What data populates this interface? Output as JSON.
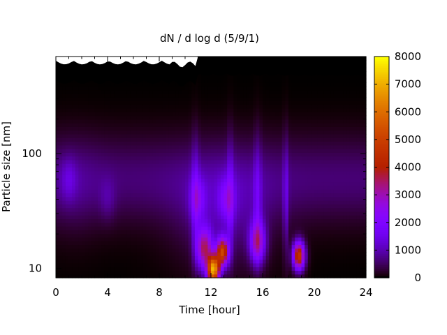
{
  "chart_data": {
    "type": "heatmap",
    "title": "dN / d log d (5/9/1)",
    "xlabel": "Time [hour]",
    "ylabel": "Particle size [nm]",
    "xlim": [
      0,
      24
    ],
    "x_ticks": [
      "0",
      "4",
      "8",
      "12",
      "16",
      "20",
      "24"
    ],
    "x_tick_values": [
      0,
      4,
      8,
      12,
      16,
      20,
      24
    ],
    "ylim_nm": [
      8.3,
      700
    ],
    "y_scale": "log",
    "y_ticks": [
      "10",
      "100"
    ],
    "y_tick_values": [
      10,
      100
    ],
    "colorbar": {
      "min": 0,
      "max": 8000,
      "ticks": [
        "0",
        "1000",
        "2000",
        "3000",
        "4000",
        "5000",
        "6000",
        "7000",
        "8000"
      ],
      "tick_values": [
        0,
        1000,
        2000,
        3000,
        4000,
        5000,
        6000,
        7000,
        8000
      ],
      "colormap": "gnuplot (black-purple-red-orange-yellow)"
    },
    "features": [
      {
        "time_hour": 12.2,
        "size_nm": 9.8,
        "value": 7000
      },
      {
        "time_hour": 12.9,
        "size_nm": 14,
        "value": 5000
      },
      {
        "time_hour": 11.5,
        "size_nm": 15,
        "value": 3500
      },
      {
        "time_hour": 18.8,
        "size_nm": 13,
        "value": 5000
      },
      {
        "time_hour": 15.6,
        "size_nm": 17,
        "value": 3000
      },
      {
        "time_hour": 11.0,
        "size_nm": 40,
        "value": 1500
      },
      {
        "time_hour": 13.2,
        "size_nm": 40,
        "value": 1500
      },
      {
        "time_hour": 1.0,
        "size_nm": 60,
        "value": 900
      },
      {
        "time_hour": 4.0,
        "size_nm": 40,
        "value": 700
      }
    ]
  },
  "colors": {
    "background": "#ffffff",
    "missing_data": "#000000"
  }
}
